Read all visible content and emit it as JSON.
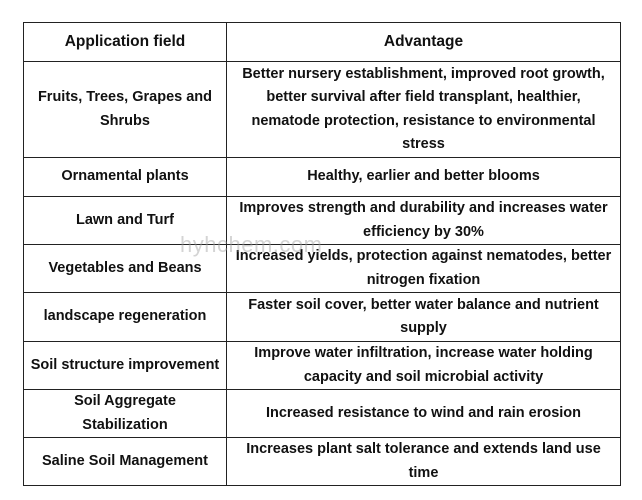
{
  "table": {
    "headers": [
      "Application field",
      "Advantage"
    ],
    "rows": [
      {
        "field": "Fruits, Trees, Grapes and Shrubs",
        "advantage": "Better nursery establishment, improved root growth, better survival after field transplant, healthier, nematode protection, resistance to environmental stress"
      },
      {
        "field": "Ornamental plants",
        "advantage": "Healthy, earlier and better blooms"
      },
      {
        "field": "Lawn and Turf",
        "advantage": "Improves strength and durability and increases water efficiency by 30%"
      },
      {
        "field": "Vegetables and Beans",
        "advantage": "Increased yields, protection against nematodes, better nitrogen fixation"
      },
      {
        "field": "landscape regeneration",
        "advantage": "Faster soil cover, better water balance and nutrient supply"
      },
      {
        "field": "Soil structure improvement",
        "advantage": "Improve water infiltration, increase water holding capacity and soil microbial activity"
      },
      {
        "field": "Soil Aggregate Stabilization",
        "advantage": "Increased resistance to wind and rain erosion"
      },
      {
        "field": "Saline Soil Management",
        "advantage": "Increases plant salt tolerance and extends land use time"
      }
    ]
  },
  "watermark": "hyhchem.com"
}
